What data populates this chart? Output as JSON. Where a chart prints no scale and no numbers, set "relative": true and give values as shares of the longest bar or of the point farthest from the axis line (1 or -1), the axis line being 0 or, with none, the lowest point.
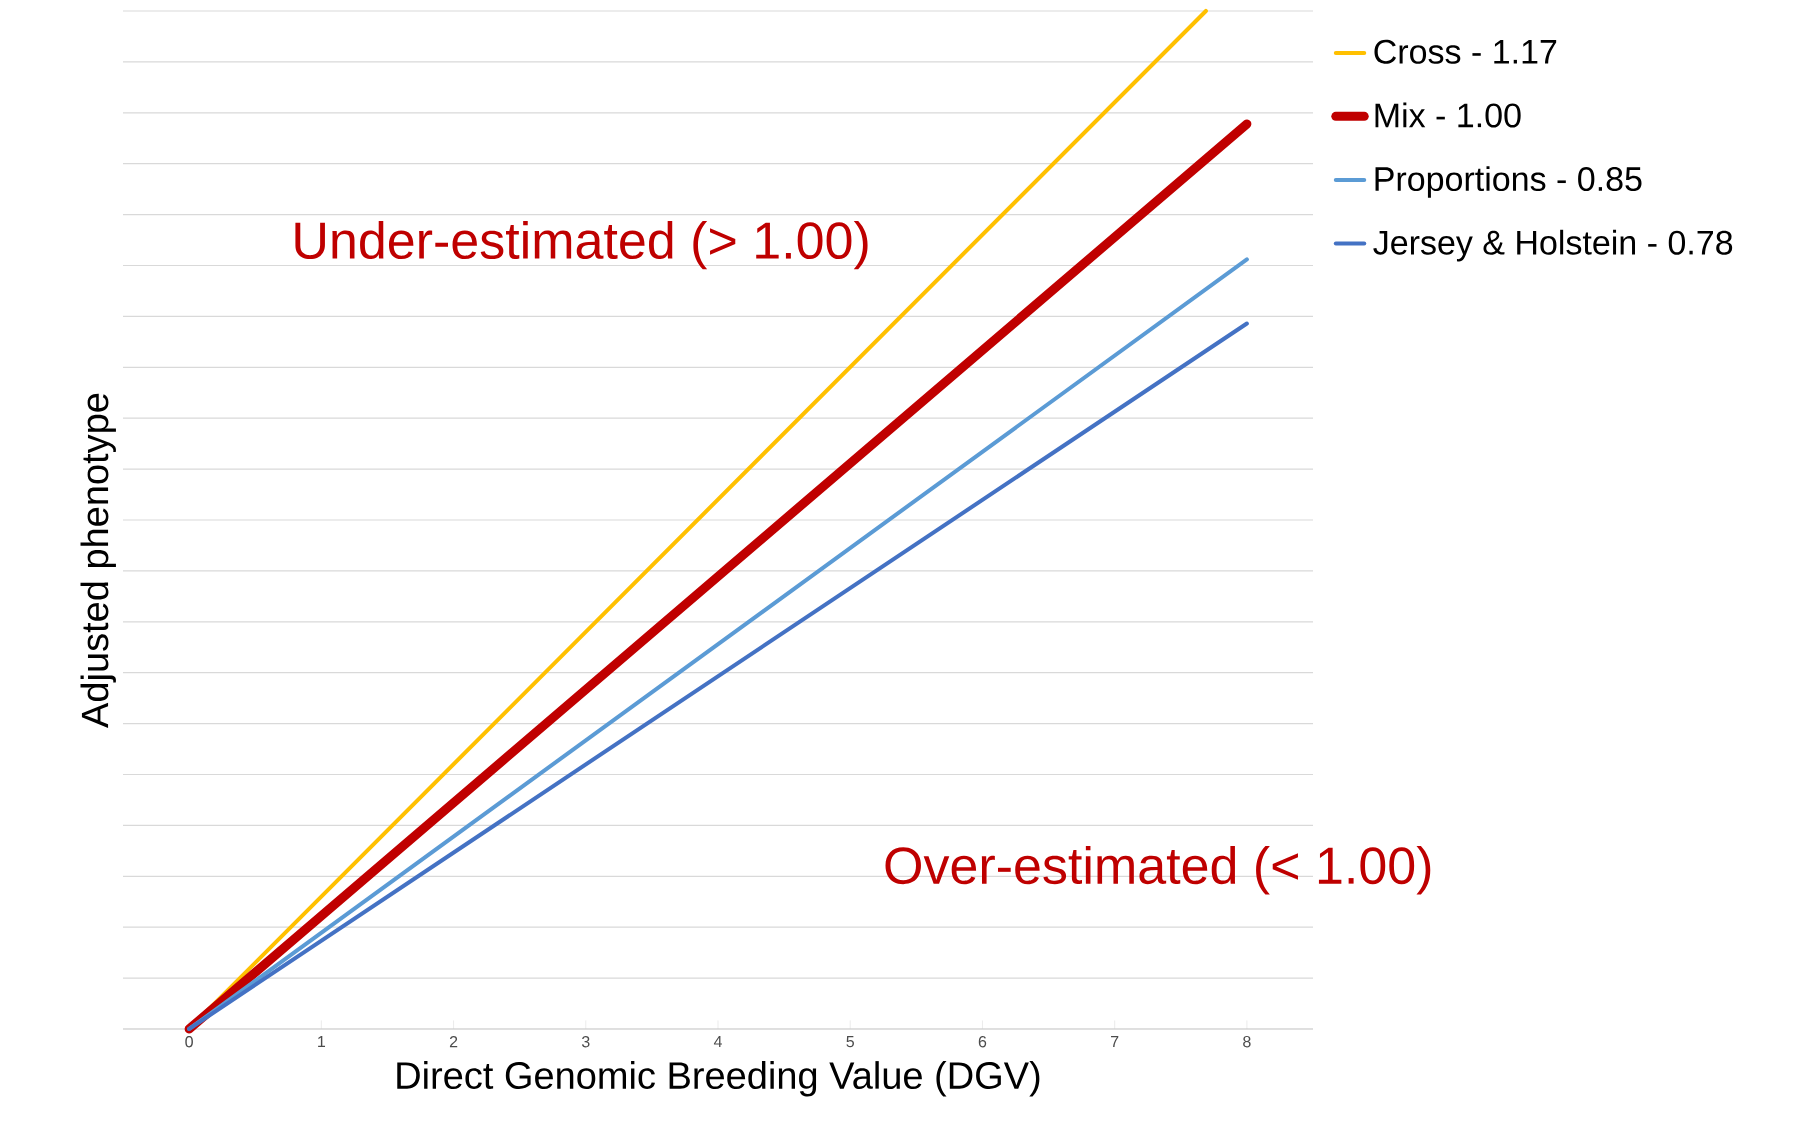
{
  "chart_data": {
    "type": "line",
    "xlabel": "Direct Genomic Breeding Value (DGV)",
    "ylabel": "Adjusted phenotype",
    "relative": true,
    "xlim": [
      -0.5,
      8.5
    ],
    "xticks": [
      0,
      1,
      2,
      3,
      4,
      5,
      6,
      7,
      8
    ],
    "grid": "y",
    "legend": "top right",
    "line_style": "solid",
    "series": [
      {
        "name": "Cross - 1.17",
        "color": "#ffc000",
        "x": [
          0,
          7.69
        ],
        "values": [
          0,
          1
        ]
      },
      {
        "name": "Mix - 1.00",
        "color": "#c00000",
        "x": [
          0,
          8
        ],
        "values": [
          0,
          0.889
        ]
      },
      {
        "name": "Proportions - 0.85",
        "color": "#5b9bd5",
        "x": [
          0,
          8
        ],
        "values": [
          0,
          0.756
        ]
      },
      {
        "name": "Jersey & Holstein - 0.78",
        "color": "#4472c4",
        "x": [
          0,
          8
        ],
        "values": [
          0,
          0.693
        ]
      }
    ],
    "annotations": [
      "Under-estimated (> 1.00)",
      "Over-estimated (< 1.00)"
    ]
  }
}
